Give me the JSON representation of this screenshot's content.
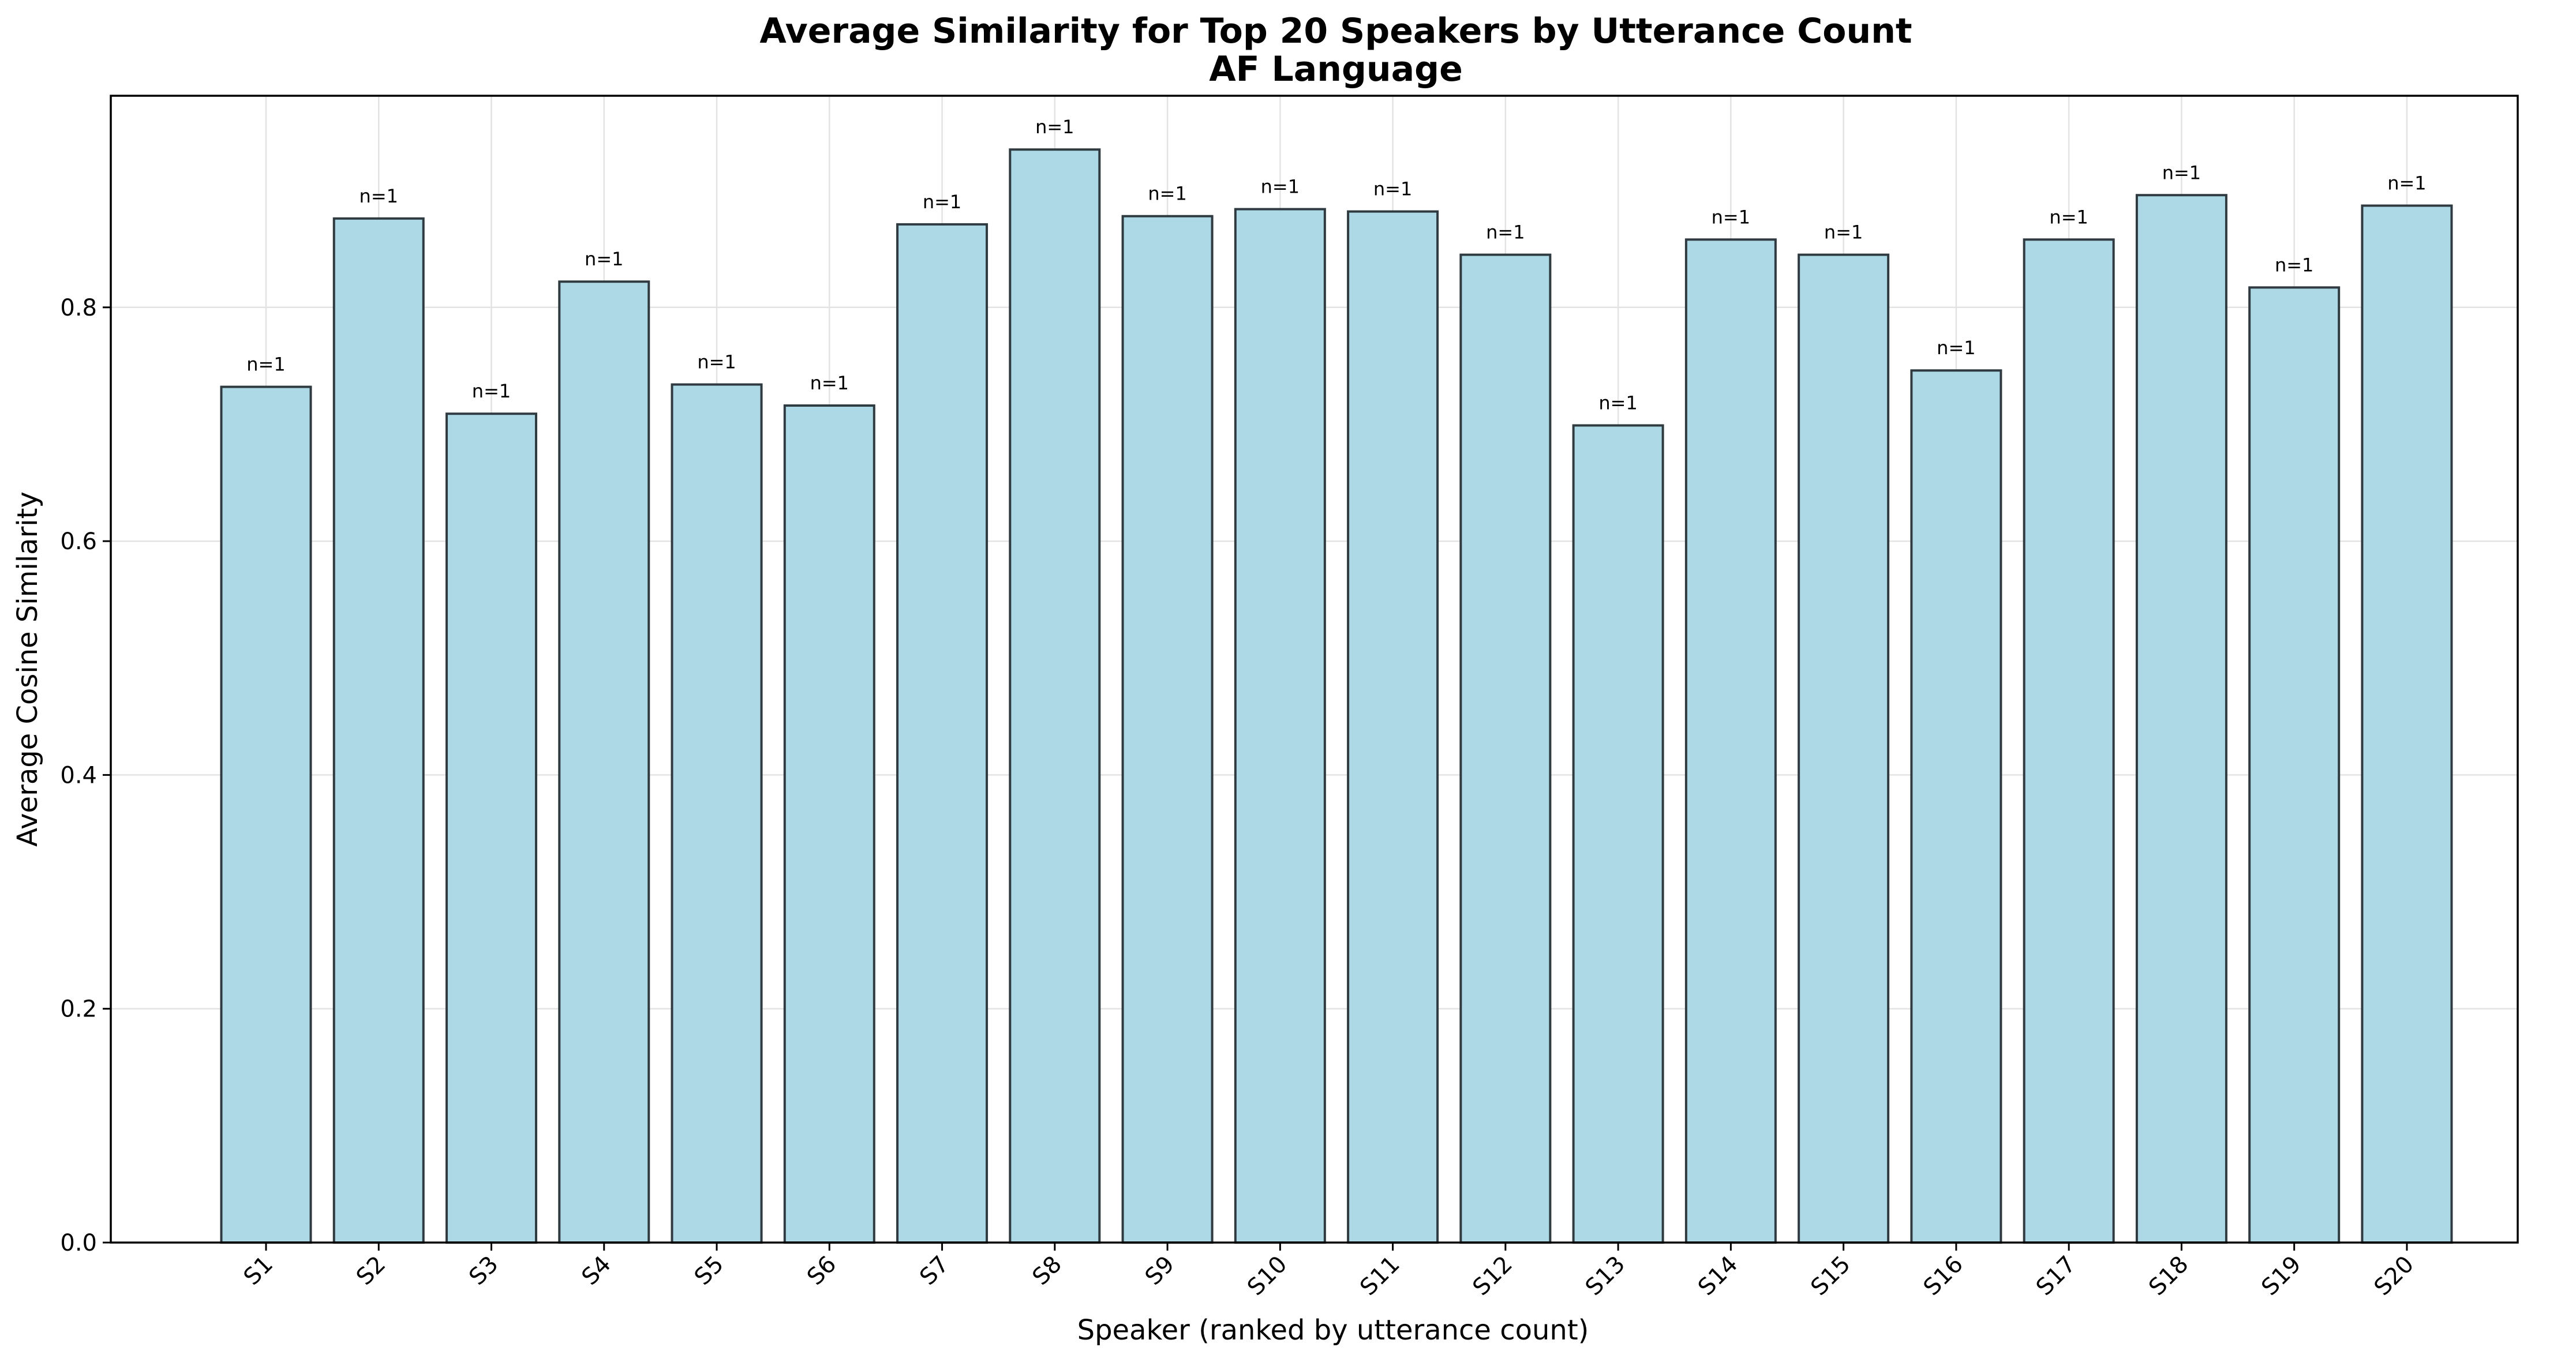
{
  "chart_data": {
    "type": "bar",
    "title": "Average Similarity for Top 20 Speakers by Utterance Count",
    "subtitle": "AF Language",
    "xlabel": "Speaker (ranked by utterance count)",
    "ylabel": "Average Cosine Similarity",
    "categories": [
      "S1",
      "S2",
      "S3",
      "S4",
      "S5",
      "S6",
      "S7",
      "S8",
      "S9",
      "S10",
      "S11",
      "S12",
      "S13",
      "S14",
      "S15",
      "S16",
      "S17",
      "S18",
      "S19",
      "S20"
    ],
    "values": [
      0.732,
      0.876,
      0.709,
      0.822,
      0.734,
      0.716,
      0.871,
      0.935,
      0.878,
      0.884,
      0.882,
      0.845,
      0.699,
      0.858,
      0.845,
      0.746,
      0.858,
      0.896,
      0.817,
      0.887
    ],
    "data_labels": [
      "n=1",
      "n=1",
      "n=1",
      "n=1",
      "n=1",
      "n=1",
      "n=1",
      "n=1",
      "n=1",
      "n=1",
      "n=1",
      "n=1",
      "n=1",
      "n=1",
      "n=1",
      "n=1",
      "n=1",
      "n=1",
      "n=1",
      "n=1"
    ],
    "ylim": [
      0,
      0.981
    ],
    "yticks": [
      0.0,
      0.2,
      0.4,
      0.6,
      0.8
    ],
    "ytick_labels": [
      "0.0",
      "0.2",
      "0.4",
      "0.6",
      "0.8"
    ],
    "grid": true,
    "bar_color": "#add8e6",
    "bar_edge_color": "#2f3b40",
    "xtick_rotation": "45deg"
  }
}
